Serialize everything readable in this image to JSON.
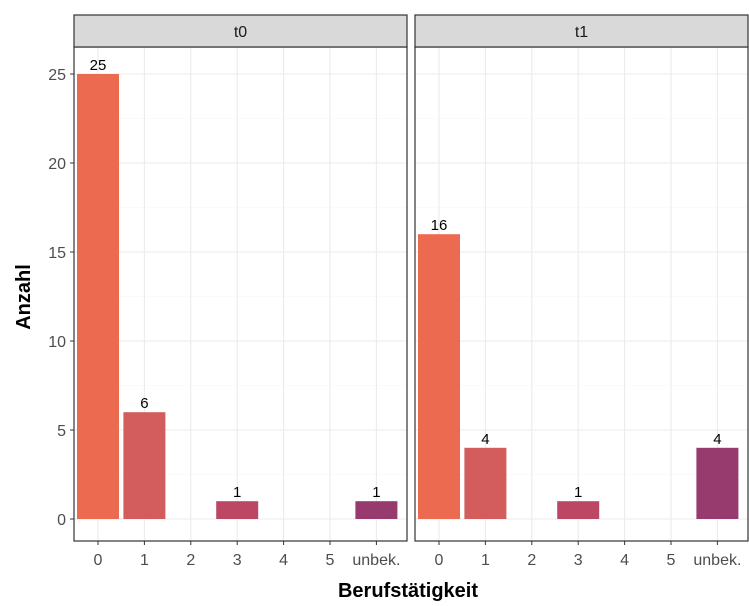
{
  "chart_data": {
    "type": "bar",
    "facet_layout": "side-by-side panels with strip headers",
    "xlabel": "Berufstätigkeit",
    "ylabel": "Anzahl",
    "categories": [
      "0",
      "1",
      "2",
      "3",
      "4",
      "5",
      "unbek."
    ],
    "ylim": [
      0,
      27
    ],
    "yticks": [
      0,
      5,
      10,
      15,
      20,
      25
    ],
    "grid": true,
    "theme": "white background, light grey grid, grey strip headers",
    "panels": [
      {
        "facet": "t0",
        "bars": [
          {
            "category": "0",
            "value": 25,
            "label": "25",
            "color": "#EC6A50"
          },
          {
            "category": "1",
            "value": 6,
            "label": "6",
            "color": "#D35C5C"
          },
          {
            "category": "3",
            "value": 1,
            "label": "1",
            "color": "#BC4765"
          },
          {
            "category": "unbek.",
            "value": 1,
            "label": "1",
            "color": "#973A6E"
          }
        ]
      },
      {
        "facet": "t1",
        "bars": [
          {
            "category": "0",
            "value": 16,
            "label": "16",
            "color": "#EC6A50"
          },
          {
            "category": "1",
            "value": 4,
            "label": "4",
            "color": "#D35C5C"
          },
          {
            "category": "3",
            "value": 1,
            "label": "1",
            "color": "#BC4765"
          },
          {
            "category": "unbek.",
            "value": 4,
            "label": "4",
            "color": "#973A6E"
          }
        ]
      }
    ]
  }
}
